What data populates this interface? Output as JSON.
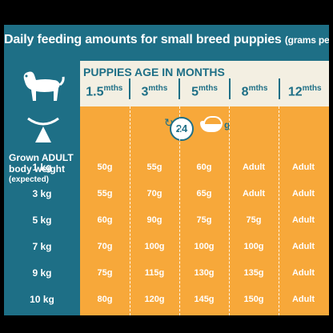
{
  "title": {
    "main": "Daily feeding amounts for small breed puppies",
    "suffix": "(grams per day):"
  },
  "panel": {
    "title": "PUPPIES AGE IN MONTHS",
    "ages": [
      {
        "value": "1.5",
        "unit": "mths"
      },
      {
        "value": "3",
        "unit": "mths"
      },
      {
        "value": "5",
        "unit": "mths"
      },
      {
        "value": "8",
        "unit": "mths"
      },
      {
        "value": "12",
        "unit": "mths"
      }
    ],
    "timer_value": "24",
    "grams_label": "g"
  },
  "weight_label": {
    "line1": "Grown ADULT",
    "line2": "body weight",
    "line3": "(expected)"
  },
  "rows": [
    {
      "kg": "1 kg",
      "values": [
        "50g",
        "55g",
        "60g",
        "Adult",
        "Adult"
      ]
    },
    {
      "kg": "3 kg",
      "values": [
        "55g",
        "70g",
        "65g",
        "Adult",
        "Adult"
      ]
    },
    {
      "kg": "5 kg",
      "values": [
        "60g",
        "90g",
        "75g",
        "75g",
        "Adult"
      ]
    },
    {
      "kg": "7 kg",
      "values": [
        "70g",
        "100g",
        "100g",
        "100g",
        "Adult"
      ]
    },
    {
      "kg": "9 kg",
      "values": [
        "75g",
        "115g",
        "130g",
        "135g",
        "Adult"
      ]
    },
    {
      "kg": "10 kg",
      "values": [
        "80g",
        "120g",
        "145g",
        "150g",
        "Adult"
      ]
    }
  ],
  "colors": {
    "teal": "#1e6f86",
    "orange": "#f7a83a",
    "cream": "#f3efe2"
  }
}
